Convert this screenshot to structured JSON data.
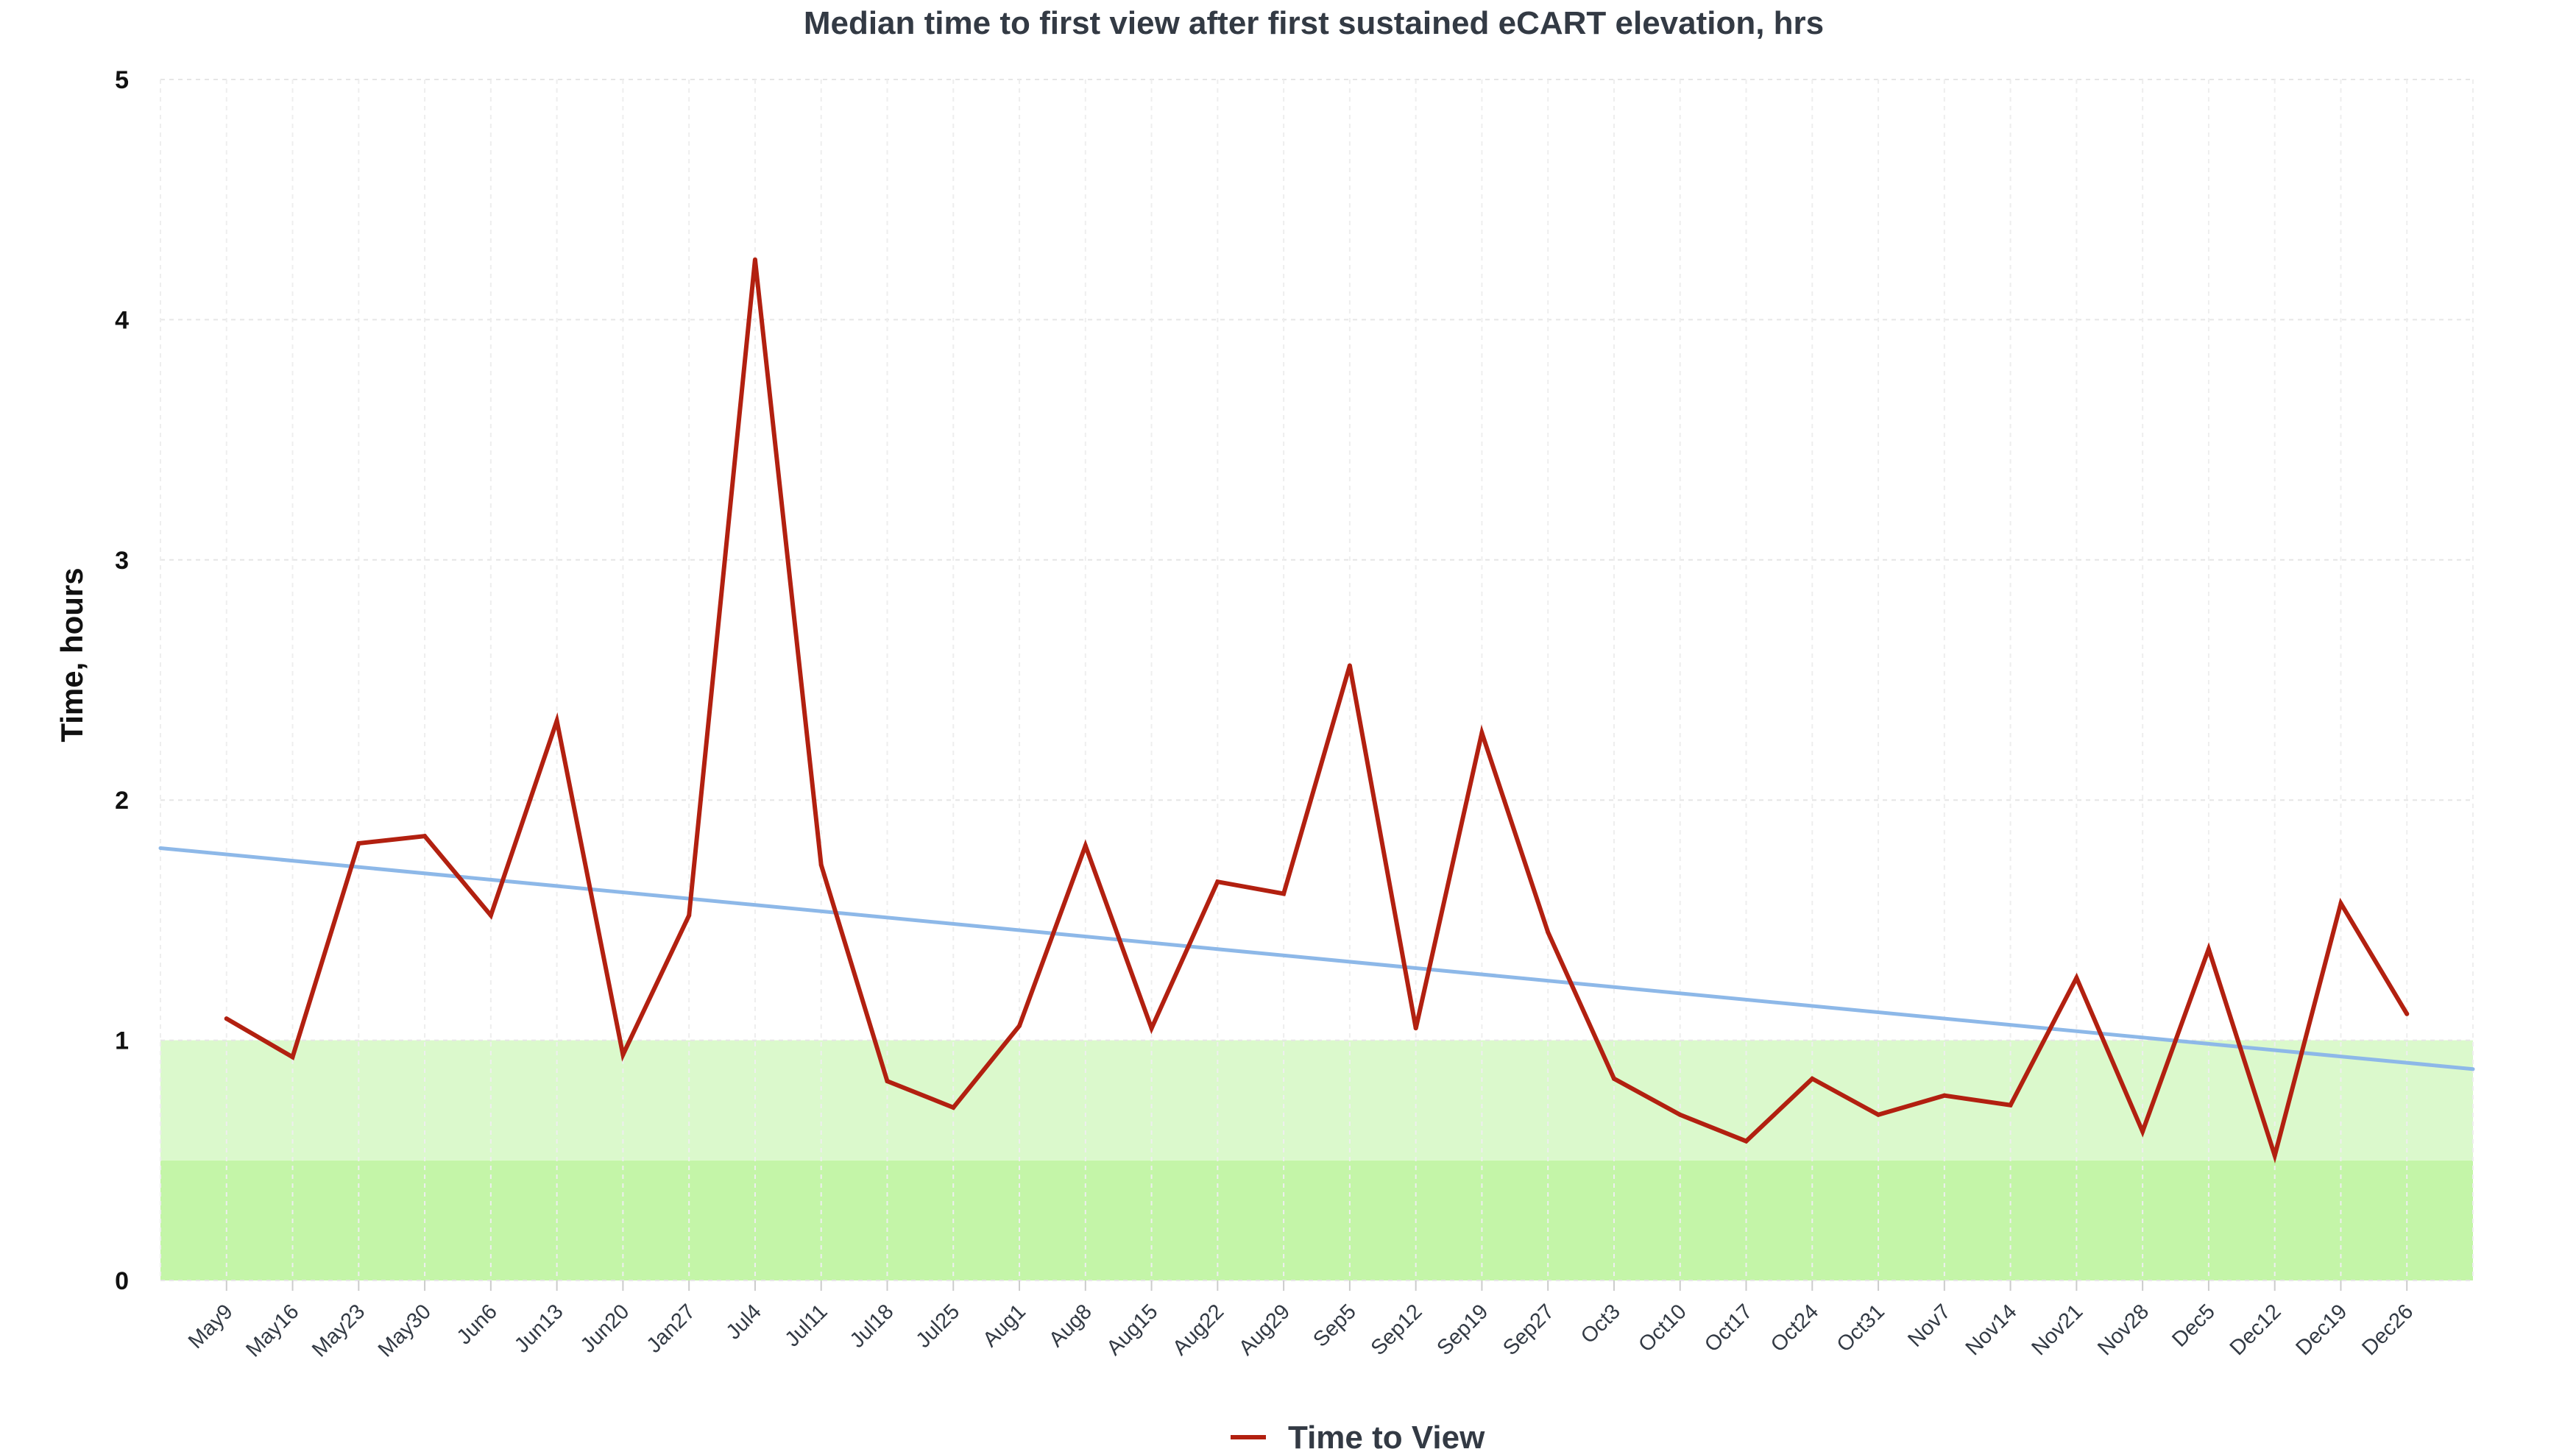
{
  "chart_data": {
    "type": "line",
    "title": "Median time to first view after first sustained eCART elevation, hrs",
    "xlabel": "",
    "ylabel": "Time, hours",
    "ylim": [
      0,
      5
    ],
    "yticks": [
      0,
      1,
      2,
      3,
      4,
      5
    ],
    "categories": [
      "May9",
      "May16",
      "May23",
      "May30",
      "Jun6",
      "Jun13",
      "Jun20",
      "Jan27",
      "Jul4",
      "Jul11",
      "Jul18",
      "Jul25",
      "Aug1",
      "Aug8",
      "Aug15",
      "Aug22",
      "Aug29",
      "Sep5",
      "Sep12",
      "Sep19",
      "Sep27",
      "Oct3",
      "Oct10",
      "Oct17",
      "Oct24",
      "Oct31",
      "Nov7",
      "Nov14",
      "Nov21",
      "Nov28",
      "Dec5",
      "Dec12",
      "Dec19",
      "Dec26"
    ],
    "series": [
      {
        "name": "Time to View",
        "color": "#b22010",
        "values": [
          1.09,
          0.93,
          1.82,
          1.85,
          1.52,
          2.33,
          0.94,
          1.52,
          4.25,
          1.73,
          0.83,
          0.72,
          1.06,
          1.81,
          1.05,
          1.66,
          1.61,
          2.56,
          1.05,
          2.28,
          1.45,
          0.84,
          0.69,
          0.58,
          0.84,
          0.69,
          0.77,
          0.73,
          1.26,
          0.62,
          1.38,
          0.52,
          1.57,
          1.11
        ]
      }
    ],
    "trendline": {
      "color": "#8db8e8",
      "start": 1.8,
      "end": 0.88
    },
    "bands": [
      {
        "from": 0,
        "to": 0.5,
        "color": "#c4f5a8"
      },
      {
        "from": 0.5,
        "to": 1,
        "color": "#dbf9cc"
      }
    ],
    "grid": true,
    "legend_position": "bottom"
  }
}
